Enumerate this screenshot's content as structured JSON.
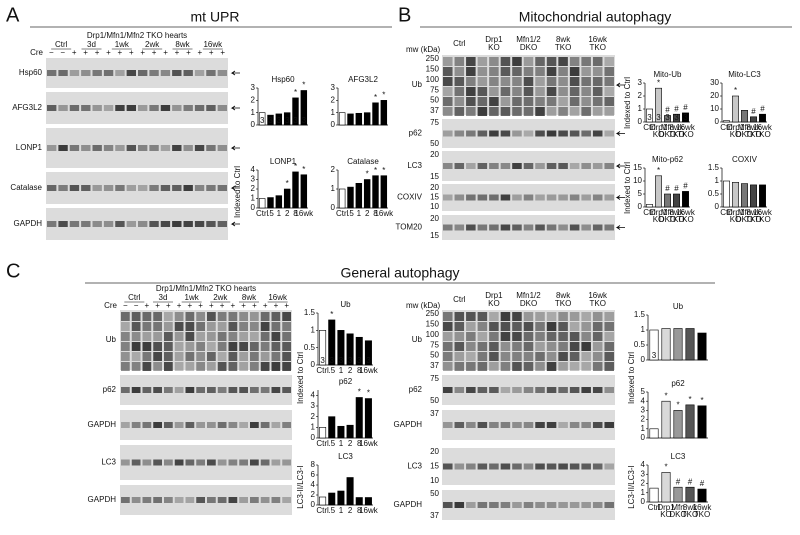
{
  "panel_a": {
    "letter": "A",
    "title": "mt UPR",
    "blot_title": "Drp1/Mfn1/Mfn2 TKO hearts",
    "cre_label": "Cre",
    "cre_signs": "− − + + + + + + + + + + + + + +",
    "groups": [
      "Ctrl",
      "3d",
      "1wk",
      "2wk",
      "8wk",
      "16wk"
    ],
    "rows": [
      "Hsp60",
      "AFG3L2",
      "LONP1",
      "Catalase",
      "GAPDH"
    ],
    "y_axis_labels": [
      "Indexed to Ctrl"
    ]
  },
  "panel_b": {
    "letter": "B",
    "title": "Mitochondrial autophagy",
    "mw_label": "mw (kDa)",
    "lanes": [
      [
        "Ctrl"
      ],
      [
        "Drp1",
        "KO"
      ],
      [
        "Mfn1/2",
        "DKO"
      ],
      [
        "8wk",
        "TKO"
      ],
      [
        "16wk",
        "TKO"
      ]
    ],
    "rows": [
      {
        "label": "Ub",
        "mw": [
          "250",
          "150",
          "100",
          "75",
          "50",
          "37"
        ]
      },
      {
        "label": "p62",
        "mw": [
          "75",
          "50"
        ]
      },
      {
        "label": "LC3",
        "mw": [
          "20",
          "15"
        ]
      },
      {
        "label": "COXIV",
        "mw": [
          "20",
          "15",
          "10"
        ]
      },
      {
        "label": "TOM20",
        "mw": [
          "20",
          "15"
        ]
      }
    ],
    "y_axis_labels": [
      "Indexed to Ctrl",
      "Indexed to Ctrl"
    ]
  },
  "panel_c": {
    "letter": "C",
    "title": "General autophagy",
    "left_blot": {
      "blot_title": "Drp1/Mfn1/Mfn2 TKO hearts",
      "cre_label": "Cre",
      "cre_signs": "− − + + + + + + + + + + + + + +",
      "groups": [
        "Ctrl",
        "3d",
        "1wk",
        "2wk",
        "8wk",
        "16wk"
      ],
      "rows": [
        "Ub",
        "p62",
        "GAPDH",
        "LC3",
        "GAPDH"
      ]
    },
    "right_blot": {
      "mw_label": "mw (kDa)",
      "lanes": [
        [
          "Ctrl"
        ],
        [
          "Drp1",
          "KO"
        ],
        [
          "Mfn1/2",
          "DKO"
        ],
        [
          "8wk",
          "TKO"
        ],
        [
          "16wk",
          "TKO"
        ]
      ],
      "rows": [
        {
          "label": "Ub",
          "mw": [
            "250",
            "150",
            "100",
            "75",
            "50",
            "37"
          ]
        },
        {
          "label": "p62",
          "mw": [
            "75",
            "50"
          ]
        },
        {
          "label": "GAPDH",
          "mw": [
            "37"
          ]
        },
        {
          "label": "LC3",
          "mw": [
            "20",
            "15",
            "10"
          ]
        },
        {
          "label": "GAPDH",
          "mw": [
            "50",
            "37"
          ]
        }
      ]
    },
    "left_y_axis_labels": [
      "Indexed to Ctrl",
      "LC3-II/LC3-I"
    ],
    "right_y_axis_labels": [
      "Indexed to Ctrl",
      "LC3-II/LC3-I"
    ]
  },
  "chart_data": [
    {
      "type": "bar",
      "title": "Hsp60",
      "categories": [
        null,
        null,
        null,
        null,
        null,
        null
      ],
      "values": [
        1,
        0.8,
        0.9,
        1.0,
        2.2,
        2.8
      ],
      "colors": [
        "#ffffff",
        "#000000",
        "#000000",
        "#000000",
        "#000000",
        "#000000"
      ],
      "markers": [
        null,
        null,
        null,
        null,
        "*",
        "*"
      ],
      "n_labels": [
        3,
        3,
        3,
        3,
        3,
        3
      ],
      "ylim": [
        0,
        3
      ],
      "yticks": [
        0,
        1,
        2,
        3
      ]
    },
    {
      "type": "bar",
      "title": "AFG3L2",
      "categories": [
        null,
        null,
        null,
        null,
        null,
        null
      ],
      "values": [
        1,
        0.9,
        0.95,
        1.0,
        1.8,
        2.0
      ],
      "colors": [
        "#ffffff",
        "#000000",
        "#000000",
        "#000000",
        "#000000",
        "#000000"
      ],
      "markers": [
        null,
        null,
        null,
        null,
        "*",
        "*"
      ],
      "ylim": [
        0,
        3
      ],
      "yticks": [
        0,
        1,
        2,
        3
      ]
    },
    {
      "type": "bar",
      "title": "LONP1",
      "categories": [
        "Ctrl",
        ".5",
        "1",
        "2",
        "8",
        "16wk"
      ],
      "values": [
        1,
        1.1,
        1.3,
        2.0,
        3.8,
        3.5
      ],
      "colors": [
        "#ffffff",
        "#000000",
        "#000000",
        "#000000",
        "#000000",
        "#000000"
      ],
      "markers": [
        null,
        null,
        null,
        "*",
        "*",
        "*"
      ],
      "ylim": [
        0,
        4
      ],
      "yticks": [
        0,
        1,
        2,
        3,
        4
      ]
    },
    {
      "type": "bar",
      "title": "Catalase",
      "categories": [
        "Ctrl",
        ".5",
        "1",
        "2",
        "8",
        "16wk"
      ],
      "values": [
        1,
        1.1,
        1.3,
        1.5,
        1.7,
        1.7
      ],
      "colors": [
        "#ffffff",
        "#000000",
        "#000000",
        "#000000",
        "#000000",
        "#000000"
      ],
      "markers": [
        null,
        null,
        null,
        "*",
        "*",
        "*"
      ],
      "ylim": [
        0,
        2
      ],
      "yticks": [
        0,
        1,
        2
      ]
    },
    {
      "type": "bar",
      "title": "Mito-Ub",
      "categories": [
        "Ctrl",
        "Drp1",
        "Mfn",
        "8wk",
        "16wk"
      ],
      "category_sublabels": [
        null,
        "KO",
        "DKO",
        "TKO",
        "TKO"
      ],
      "values": [
        1,
        2.6,
        0.5,
        0.6,
        0.7
      ],
      "colors": [
        "#ffffff",
        "#c8c8c8",
        "#777777",
        "#444444",
        "#000000"
      ],
      "markers": [
        null,
        "*",
        "#",
        "#",
        "#"
      ],
      "n_labels": [
        3,
        3,
        3,
        3,
        3
      ],
      "ylim": [
        0,
        3
      ],
      "yticks": [
        0,
        1,
        2,
        3
      ]
    },
    {
      "type": "bar",
      "title": "Mito-LC3",
      "categories": [
        "Ctrl",
        "Drp1",
        "Mfn",
        "8wk",
        "16wk"
      ],
      "category_sublabels": [
        null,
        "KO",
        "DKO",
        "TKO",
        "TKO"
      ],
      "values": [
        1,
        20,
        9,
        4,
        6
      ],
      "colors": [
        "#ffffff",
        "#c8c8c8",
        "#777777",
        "#444444",
        "#000000"
      ],
      "markers": [
        null,
        "*",
        null,
        "#",
        "#"
      ],
      "ylim": [
        0,
        30
      ],
      "yticks": [
        0,
        10,
        20,
        30
      ]
    },
    {
      "type": "bar",
      "title": "Mito-p62",
      "categories": [
        "Ctrl",
        "Drp1",
        "Mfn",
        "8wk",
        "16wk"
      ],
      "category_sublabels": [
        null,
        "KO",
        "DKO",
        "TKO",
        "TKO"
      ],
      "values": [
        1,
        12,
        5,
        5,
        6
      ],
      "colors": [
        "#ffffff",
        "#c8c8c8",
        "#777777",
        "#444444",
        "#000000"
      ],
      "markers": [
        null,
        "*",
        "#",
        "#",
        "#"
      ],
      "ylim": [
        0,
        15
      ],
      "yticks": [
        0,
        5,
        10,
        15
      ]
    },
    {
      "type": "bar",
      "title": "COXIV",
      "categories": [
        "Ctrl",
        "Drp1",
        "Mfn",
        "8wk",
        "16wk"
      ],
      "category_sublabels": [
        null,
        "KO",
        "DKO",
        "TKO",
        "TKO"
      ],
      "values": [
        1,
        0.95,
        0.9,
        0.85,
        0.85
      ],
      "colors": [
        "#ffffff",
        "#c8c8c8",
        "#777777",
        "#444444",
        "#000000"
      ],
      "markers": [
        null,
        null,
        null,
        null,
        null
      ],
      "ylim": [
        0,
        1.5
      ],
      "yticks": [
        0,
        0.5,
        1,
        1.5
      ]
    },
    {
      "type": "bar",
      "title": "Ub",
      "categories": [
        "Ctrl",
        ".5",
        "1",
        "2",
        "8",
        "16wk"
      ],
      "values": [
        1.0,
        1.3,
        1.0,
        0.9,
        0.8,
        0.7
      ],
      "colors": [
        "#ffffff",
        "#000000",
        "#000000",
        "#000000",
        "#000000",
        "#000000"
      ],
      "markers": [
        null,
        "*",
        null,
        null,
        null,
        null
      ],
      "n_labels": [
        3,
        3,
        3,
        3,
        3,
        3
      ],
      "ylim": [
        0,
        1.5
      ],
      "yticks": [
        0,
        0.5,
        1,
        1.5
      ]
    },
    {
      "type": "bar",
      "title": "p62",
      "categories": [
        "Ctrl",
        ".5",
        "1",
        "2",
        "8",
        "16wk"
      ],
      "values": [
        1,
        2,
        1.1,
        1.2,
        3.8,
        3.7
      ],
      "colors": [
        "#ffffff",
        "#000000",
        "#000000",
        "#000000",
        "#000000",
        "#000000"
      ],
      "markers": [
        null,
        null,
        null,
        null,
        "*",
        "*"
      ],
      "ylim": [
        0,
        4.5
      ],
      "yticks": [
        0,
        1,
        2,
        3,
        4
      ]
    },
    {
      "type": "bar",
      "title": "LC3",
      "categories": [
        "Ctrl",
        ".5",
        "1",
        "2",
        "8",
        "16wk"
      ],
      "values": [
        1.6,
        2.4,
        2.8,
        5.5,
        1.5,
        1.5
      ],
      "colors": [
        "#ffffff",
        "#000000",
        "#000000",
        "#000000",
        "#000000",
        "#000000"
      ],
      "markers": [
        null,
        null,
        null,
        null,
        null,
        null
      ],
      "ylim": [
        0,
        8
      ],
      "yticks": [
        0,
        2,
        4,
        6,
        8
      ]
    },
    {
      "type": "bar",
      "title": "Ub",
      "categories": [
        null,
        null,
        null,
        null,
        null
      ],
      "values": [
        1,
        1.05,
        1.05,
        1.05,
        0.9
      ],
      "colors": [
        "#ffffff",
        "#d9d9d9",
        "#999999",
        "#555555",
        "#000000"
      ],
      "markers": [
        null,
        null,
        null,
        null,
        null
      ],
      "n_labels": [
        3,
        null,
        null,
        null,
        null
      ],
      "ylim": [
        0,
        1.5
      ],
      "yticks": [
        0,
        0.5,
        1,
        1.5
      ]
    },
    {
      "type": "bar",
      "title": "p62",
      "categories": [
        null,
        null,
        null,
        null,
        null
      ],
      "values": [
        1,
        4,
        3,
        3.6,
        3.5
      ],
      "colors": [
        "#ffffff",
        "#d9d9d9",
        "#999999",
        "#555555",
        "#000000"
      ],
      "markers": [
        null,
        "*",
        "*",
        "*",
        "*"
      ],
      "ylim": [
        0,
        5
      ],
      "yticks": [
        0,
        1,
        2,
        3,
        4,
        5
      ]
    },
    {
      "type": "bar",
      "title": "LC3",
      "categories": [
        "Ctrl",
        "Drp1",
        "Mfn",
        "8wk",
        "16wk"
      ],
      "category_sublabels": [
        null,
        "KO",
        "DKO",
        "TKO",
        "TKO"
      ],
      "values": [
        1.5,
        3.2,
        1.6,
        1.6,
        1.4
      ],
      "colors": [
        "#ffffff",
        "#d9d9d9",
        "#999999",
        "#555555",
        "#000000"
      ],
      "markers": [
        null,
        "*",
        "#",
        "#",
        "#"
      ],
      "ylim": [
        0,
        4
      ],
      "yticks": [
        0,
        1,
        2,
        3,
        4
      ]
    }
  ]
}
